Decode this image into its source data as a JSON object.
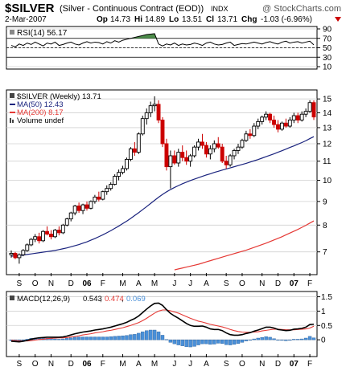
{
  "header": {
    "symbol": "$SILVER",
    "name": "(Silver - Continuous Contract (EOD))",
    "exchange": "INDX",
    "source": "@ StockCharts.com",
    "date": "2-Mar-2007",
    "open_label": "Op",
    "open": "14.73",
    "high_label": "Hi",
    "high": "14.89",
    "low_label": "Lo",
    "low": "13.51",
    "close_label": "Cl",
    "close": "13.71",
    "change_label": "Chg",
    "change": "-1.03 (-6.96%)"
  },
  "colors": {
    "up": "#000000",
    "down": "#cc0000",
    "ma50": "#1a237e",
    "ma200": "#e53935",
    "macd": "#000000",
    "signal": "#e53935",
    "hist": "#4a90d9",
    "rsi_fill": "#4c8c4a"
  },
  "chart_data": [
    {
      "type": "line",
      "panel": "rsi",
      "legend": "RSI(14) 56.17",
      "ylim": [
        10,
        90
      ],
      "yticks": [
        90,
        70,
        50,
        30,
        10
      ],
      "ref_lines": [
        70,
        50,
        30
      ],
      "x": [
        0,
        1,
        2,
        3,
        4,
        5,
        6,
        7,
        8,
        9,
        10,
        11,
        12,
        13,
        14,
        15,
        16,
        17,
        18,
        19,
        20,
        21,
        22,
        23,
        24,
        25,
        26,
        27,
        28,
        29,
        30,
        31,
        32,
        33,
        34,
        35,
        36,
        37,
        38,
        39,
        40,
        41,
        42,
        43,
        44,
        45,
        46,
        47,
        48,
        49,
        50,
        51,
        52,
        53,
        54,
        55,
        56,
        57,
        58,
        59,
        60,
        61,
        62,
        63,
        64,
        65,
        66,
        67,
        68,
        69,
        70,
        71,
        72,
        73,
        74,
        75,
        76
      ],
      "values": [
        55,
        52,
        58,
        55,
        60,
        57,
        62,
        58,
        54,
        60,
        58,
        62,
        55,
        57,
        60,
        62,
        58,
        56,
        60,
        63,
        60,
        62,
        61,
        58,
        63,
        60,
        65,
        62,
        66,
        68,
        70,
        72,
        74,
        76,
        78,
        79,
        80,
        58,
        54,
        58,
        56,
        60,
        55,
        58,
        56,
        57,
        60,
        58,
        55,
        60,
        62,
        58,
        56,
        57,
        60,
        62,
        55,
        57,
        59,
        58,
        60,
        62,
        60,
        58,
        61,
        63,
        60,
        58,
        62,
        64,
        60,
        62,
        63,
        60,
        62,
        64,
        56.17
      ]
    },
    {
      "type": "candlestick",
      "panel": "price",
      "legend": "$SILVER (Weekly) 13.71",
      "ylim": [
        6.3,
        15.5
      ],
      "yticks": [
        15,
        14,
        13,
        12,
        11,
        10,
        9,
        8,
        7
      ],
      "log_scale": true,
      "x_month_labels": [
        {
          "week": 2,
          "label": "S"
        },
        {
          "week": 6,
          "label": "O"
        },
        {
          "week": 10,
          "label": "N"
        },
        {
          "week": 15,
          "label": "D"
        },
        {
          "week": 19,
          "label": "06",
          "bold": true
        },
        {
          "week": 23,
          "label": "F"
        },
        {
          "week": 28,
          "label": "M"
        },
        {
          "week": 32,
          "label": "A"
        },
        {
          "week": 36,
          "label": "M"
        },
        {
          "week": 41,
          "label": "J"
        },
        {
          "week": 45,
          "label": "J"
        },
        {
          "week": 49,
          "label": "A"
        },
        {
          "week": 54,
          "label": "S"
        },
        {
          "week": 58,
          "label": "O"
        },
        {
          "week": 63,
          "label": "N"
        },
        {
          "week": 67,
          "label": "D"
        },
        {
          "week": 71,
          "label": "07",
          "bold": true
        },
        {
          "week": 75,
          "label": "F"
        }
      ],
      "candles": [
        [
          6.9,
          7.05,
          6.8,
          6.95
        ],
        [
          6.95,
          7.0,
          6.75,
          6.8
        ],
        [
          6.8,
          6.95,
          6.6,
          6.9
        ],
        [
          6.9,
          7.1,
          6.85,
          7.05
        ],
        [
          7.05,
          7.3,
          7.0,
          7.25
        ],
        [
          7.25,
          7.5,
          7.2,
          7.45
        ],
        [
          7.45,
          7.65,
          7.35,
          7.55
        ],
        [
          7.55,
          7.7,
          7.3,
          7.4
        ],
        [
          7.4,
          7.8,
          7.35,
          7.75
        ],
        [
          7.75,
          7.95,
          7.6,
          7.65
        ],
        [
          7.65,
          7.8,
          7.45,
          7.55
        ],
        [
          7.55,
          7.85,
          7.5,
          7.8
        ],
        [
          7.8,
          7.95,
          7.6,
          7.7
        ],
        [
          7.7,
          8.05,
          7.65,
          8.0
        ],
        [
          8.0,
          8.3,
          7.95,
          8.25
        ],
        [
          8.25,
          8.55,
          8.15,
          8.5
        ],
        [
          8.5,
          8.85,
          8.4,
          8.8
        ],
        [
          8.8,
          8.95,
          8.5,
          8.6
        ],
        [
          8.6,
          8.9,
          8.45,
          8.85
        ],
        [
          8.85,
          9.0,
          8.6,
          8.7
        ],
        [
          8.7,
          9.05,
          8.65,
          9.0
        ],
        [
          9.0,
          9.3,
          8.9,
          9.2
        ],
        [
          9.2,
          9.45,
          9.0,
          9.1
        ],
        [
          9.1,
          9.5,
          9.05,
          9.45
        ],
        [
          9.45,
          9.75,
          9.3,
          9.6
        ],
        [
          9.6,
          9.9,
          9.5,
          9.8
        ],
        [
          9.8,
          10.3,
          9.75,
          10.2
        ],
        [
          10.2,
          10.55,
          10.0,
          10.4
        ],
        [
          10.4,
          10.75,
          10.3,
          10.6
        ],
        [
          10.6,
          11.2,
          10.5,
          11.1
        ],
        [
          11.1,
          11.8,
          11.0,
          11.7
        ],
        [
          11.7,
          12.1,
          11.3,
          11.5
        ],
        [
          11.5,
          12.7,
          11.4,
          12.6
        ],
        [
          12.6,
          13.8,
          12.5,
          13.6
        ],
        [
          13.6,
          14.3,
          13.2,
          14.0
        ],
        [
          14.0,
          14.8,
          13.7,
          14.5
        ],
        [
          14.5,
          15.2,
          14.1,
          14.6
        ],
        [
          14.6,
          14.9,
          13.3,
          13.5
        ],
        [
          13.5,
          13.7,
          11.8,
          12.0
        ],
        [
          12.0,
          12.3,
          10.5,
          10.7
        ],
        [
          10.7,
          11.6,
          9.6,
          11.3
        ],
        [
          11.3,
          11.6,
          10.8,
          10.9
        ],
        [
          10.9,
          11.7,
          10.7,
          11.5
        ],
        [
          11.5,
          11.9,
          11.0,
          11.2
        ],
        [
          11.2,
          11.6,
          10.8,
          11.0
        ],
        [
          11.0,
          11.4,
          10.7,
          11.3
        ],
        [
          11.3,
          11.9,
          11.2,
          11.8
        ],
        [
          11.8,
          12.3,
          11.6,
          12.1
        ],
        [
          12.1,
          12.6,
          11.7,
          11.9
        ],
        [
          11.9,
          12.1,
          11.2,
          11.4
        ],
        [
          11.4,
          11.9,
          11.1,
          11.7
        ],
        [
          11.7,
          12.2,
          11.5,
          12.0
        ],
        [
          12.0,
          12.4,
          11.7,
          11.8
        ],
        [
          11.8,
          12.0,
          10.9,
          11.0
        ],
        [
          11.0,
          11.3,
          10.6,
          10.8
        ],
        [
          10.8,
          11.4,
          10.7,
          11.3
        ],
        [
          11.3,
          11.7,
          11.1,
          11.6
        ],
        [
          11.6,
          12.0,
          11.4,
          11.8
        ],
        [
          11.8,
          12.3,
          11.7,
          12.2
        ],
        [
          12.2,
          12.8,
          12.1,
          12.6
        ],
        [
          12.6,
          12.9,
          12.3,
          12.5
        ],
        [
          12.5,
          13.3,
          12.4,
          13.1
        ],
        [
          13.1,
          13.6,
          12.9,
          13.4
        ],
        [
          13.4,
          13.8,
          13.2,
          13.7
        ],
        [
          13.7,
          14.1,
          13.5,
          13.9
        ],
        [
          13.9,
          14.0,
          13.3,
          13.5
        ],
        [
          13.5,
          13.8,
          13.0,
          13.2
        ],
        [
          13.2,
          13.5,
          12.7,
          12.9
        ],
        [
          12.9,
          13.4,
          12.8,
          13.3
        ],
        [
          13.3,
          13.6,
          13.0,
          13.1
        ],
        [
          13.1,
          13.7,
          13.0,
          13.5
        ],
        [
          13.5,
          14.0,
          13.3,
          13.8
        ],
        [
          13.8,
          14.0,
          13.3,
          13.5
        ],
        [
          13.5,
          14.1,
          13.4,
          13.9
        ],
        [
          13.9,
          14.3,
          13.7,
          14.1
        ],
        [
          14.1,
          14.9,
          14.0,
          14.73
        ],
        [
          14.73,
          14.89,
          13.51,
          13.71
        ]
      ],
      "series": [
        {
          "name": "MA(50) 12.43",
          "color_key": "ma50",
          "values": [
            6.85,
            6.86,
            6.87,
            6.89,
            6.91,
            6.93,
            6.95,
            6.97,
            6.99,
            7.01,
            7.03,
            7.05,
            7.08,
            7.11,
            7.14,
            7.18,
            7.22,
            7.26,
            7.31,
            7.36,
            7.42,
            7.48,
            7.55,
            7.62,
            7.7,
            7.78,
            7.87,
            7.96,
            8.06,
            8.16,
            8.27,
            8.39,
            8.51,
            8.64,
            8.77,
            8.91,
            9.05,
            9.19,
            9.32,
            9.44,
            9.55,
            9.65,
            9.74,
            9.83,
            9.91,
            9.99,
            10.06,
            10.13,
            10.2,
            10.27,
            10.33,
            10.4,
            10.46,
            10.52,
            10.58,
            10.64,
            10.7,
            10.76,
            10.82,
            10.88,
            10.95,
            11.02,
            11.09,
            11.17,
            11.25,
            11.33,
            11.41,
            11.5,
            11.59,
            11.68,
            11.78,
            11.87,
            11.97,
            12.07,
            12.18,
            12.31,
            12.43
          ]
        },
        {
          "name": "MA(200) 8.17",
          "color_key": "ma200",
          "values": [
            null,
            null,
            null,
            null,
            null,
            null,
            null,
            null,
            null,
            null,
            null,
            null,
            null,
            null,
            null,
            null,
            null,
            null,
            null,
            null,
            null,
            null,
            null,
            null,
            null,
            null,
            null,
            null,
            null,
            null,
            null,
            null,
            null,
            null,
            null,
            null,
            null,
            null,
            null,
            null,
            null,
            6.4,
            6.43,
            6.46,
            6.49,
            6.52,
            6.55,
            6.58,
            6.62,
            6.66,
            6.7,
            6.74,
            6.78,
            6.82,
            6.86,
            6.9,
            6.94,
            6.98,
            7.02,
            7.06,
            7.11,
            7.16,
            7.21,
            7.26,
            7.31,
            7.37,
            7.43,
            7.49,
            7.55,
            7.62,
            7.69,
            7.76,
            7.83,
            7.91,
            7.99,
            8.08,
            8.17
          ]
        }
      ],
      "volume_label": "Volume undef"
    },
    {
      "type": "line",
      "panel": "macd",
      "legend": {
        "prefix": "MACD(12,26,9)",
        "macd": "0.543",
        "signal": "0.474",
        "hist": "0.069"
      },
      "ylim": [
        -0.5,
        1.6
      ],
      "yticks": [
        1.5,
        1.0,
        0.5,
        0.0
      ],
      "series": [
        {
          "name": "MACD(12,26,9)",
          "color_key": "macd",
          "values": [
            -0.05,
            -0.06,
            -0.07,
            -0.05,
            -0.02,
            0.02,
            0.05,
            0.07,
            0.08,
            0.09,
            0.09,
            0.09,
            0.09,
            0.1,
            0.13,
            0.17,
            0.21,
            0.24,
            0.27,
            0.29,
            0.31,
            0.34,
            0.36,
            0.38,
            0.41,
            0.44,
            0.48,
            0.52,
            0.56,
            0.61,
            0.68,
            0.74,
            0.83,
            0.95,
            1.07,
            1.18,
            1.27,
            1.28,
            1.2,
            1.05,
            0.92,
            0.83,
            0.75,
            0.66,
            0.57,
            0.5,
            0.47,
            0.47,
            0.48,
            0.44,
            0.38,
            0.36,
            0.36,
            0.32,
            0.24,
            0.18,
            0.16,
            0.16,
            0.18,
            0.22,
            0.25,
            0.3,
            0.34,
            0.39,
            0.44,
            0.44,
            0.41,
            0.36,
            0.34,
            0.32,
            0.33,
            0.37,
            0.38,
            0.4,
            0.44,
            0.53,
            0.543
          ]
        },
        {
          "name": "signal",
          "color_key": "signal",
          "values": [
            -0.02,
            -0.03,
            -0.04,
            -0.04,
            -0.04,
            -0.03,
            -0.01,
            0.01,
            0.02,
            0.04,
            0.05,
            0.06,
            0.07,
            0.07,
            0.08,
            0.1,
            0.12,
            0.14,
            0.17,
            0.19,
            0.21,
            0.24,
            0.26,
            0.28,
            0.31,
            0.33,
            0.36,
            0.39,
            0.42,
            0.46,
            0.5,
            0.55,
            0.6,
            0.67,
            0.75,
            0.84,
            0.93,
            1.0,
            1.04,
            1.04,
            1.01,
            0.97,
            0.93,
            0.87,
            0.81,
            0.75,
            0.7,
            0.65,
            0.62,
            0.58,
            0.54,
            0.51,
            0.48,
            0.45,
            0.41,
            0.36,
            0.32,
            0.29,
            0.27,
            0.26,
            0.26,
            0.27,
            0.28,
            0.31,
            0.33,
            0.35,
            0.37,
            0.37,
            0.36,
            0.35,
            0.35,
            0.35,
            0.36,
            0.37,
            0.38,
            0.41,
            0.474
          ]
        },
        {
          "name": "histogram",
          "color_key": "hist",
          "type": "bar",
          "values": [
            -0.03,
            -0.03,
            -0.03,
            -0.01,
            0.02,
            0.05,
            0.06,
            0.06,
            0.06,
            0.05,
            0.04,
            0.03,
            0.02,
            0.03,
            0.05,
            0.07,
            0.09,
            0.1,
            0.1,
            0.1,
            0.1,
            0.1,
            0.1,
            0.1,
            0.1,
            0.11,
            0.12,
            0.13,
            0.14,
            0.15,
            0.18,
            0.19,
            0.23,
            0.28,
            0.32,
            0.34,
            0.34,
            0.28,
            0.16,
            0.01,
            -0.09,
            -0.14,
            -0.18,
            -0.21,
            -0.24,
            -0.25,
            -0.23,
            -0.18,
            -0.14,
            -0.14,
            -0.16,
            -0.15,
            -0.12,
            -0.13,
            -0.17,
            -0.18,
            -0.16,
            -0.13,
            -0.09,
            -0.04,
            -0.01,
            0.03,
            0.06,
            0.08,
            0.11,
            0.09,
            0.04,
            -0.01,
            -0.02,
            -0.03,
            -0.02,
            0.02,
            0.02,
            0.03,
            0.06,
            0.12,
            0.069
          ]
        }
      ]
    }
  ]
}
